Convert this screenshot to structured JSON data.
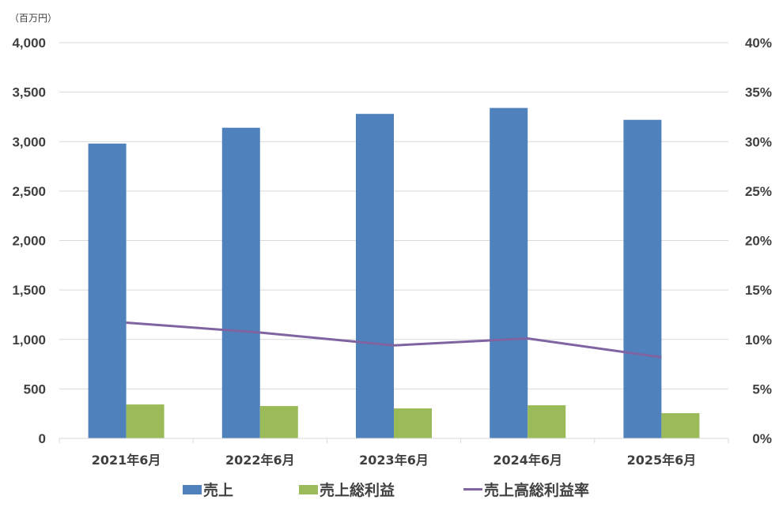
{
  "unit_label": "（百万円）",
  "legend": [
    {
      "label": "売上",
      "type": "bar",
      "color": "#4F81BD"
    },
    {
      "label": "売上総利益",
      "type": "bar",
      "color": "#9BBB59"
    },
    {
      "label": "売上高総利益率",
      "type": "line",
      "color": "#8064A2"
    }
  ],
  "chart_data": {
    "type": "bar",
    "title": "",
    "xlabel": "",
    "ylabel": "（百万円）",
    "y2label": "",
    "categories": [
      "2021年6月",
      "2022年6月",
      "2023年6月",
      "2024年6月",
      "2025年6月"
    ],
    "series": [
      {
        "name": "売上",
        "type": "bar",
        "axis": "left",
        "color": "#4F81BD",
        "values": [
          2980,
          3140,
          3280,
          3340,
          3220
        ]
      },
      {
        "name": "売上総利益",
        "type": "bar",
        "axis": "left",
        "color": "#9BBB59",
        "values": [
          343,
          327,
          303,
          335,
          255
        ]
      },
      {
        "name": "売上高総利益率",
        "type": "line",
        "axis": "right",
        "color": "#8064A2",
        "values": [
          11.7,
          10.7,
          9.4,
          10.1,
          8.2
        ]
      }
    ],
    "ylim": [
      0,
      4000
    ],
    "y2lim": [
      0,
      40
    ],
    "y_ticks": [
      "0",
      "500",
      "1,000",
      "1,500",
      "2,000",
      "2,500",
      "3,000",
      "3,500",
      "4,000"
    ],
    "y2_ticks": [
      "0%",
      "5%",
      "10%",
      "15%",
      "20%",
      "25%",
      "30%",
      "35%",
      "40%"
    ],
    "grid": true,
    "legend_position": "bottom"
  }
}
